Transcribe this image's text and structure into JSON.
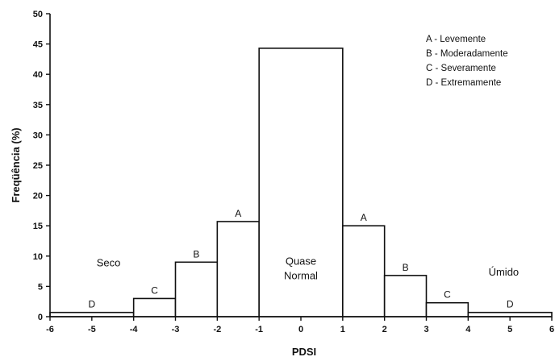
{
  "chart_data": {
    "type": "bar",
    "xlabel": "PDSI",
    "ylabel": "Freqüência (%)",
    "xlim": [
      -6,
      6
    ],
    "ylim": [
      0,
      50
    ],
    "x_ticks": [
      "-6",
      "-5",
      "-4",
      "-3",
      "-2",
      "-1",
      "0",
      "1",
      "2",
      "3",
      "4",
      "5",
      "6"
    ],
    "y_ticks": [
      "0",
      "5",
      "10",
      "15",
      "20",
      "25",
      "30",
      "35",
      "40",
      "45",
      "50"
    ],
    "bars": [
      {
        "x0": -6,
        "x1": -4,
        "value": 0.7,
        "label": "D"
      },
      {
        "x0": -4,
        "x1": -3,
        "value": 3.0,
        "label": "C"
      },
      {
        "x0": -3,
        "x1": -2,
        "value": 9.0,
        "label": "B"
      },
      {
        "x0": -2,
        "x1": -1,
        "value": 15.7,
        "label": "A"
      },
      {
        "x0": -1,
        "x1": 1,
        "value": 44.3,
        "label": ""
      },
      {
        "x0": 1,
        "x1": 2,
        "value": 15.0,
        "label": "A"
      },
      {
        "x0": 2,
        "x1": 3,
        "value": 6.8,
        "label": "B"
      },
      {
        "x0": 3,
        "x1": 4,
        "value": 2.3,
        "label": "C"
      },
      {
        "x0": 4,
        "x1": 6,
        "value": 0.7,
        "label": "D"
      }
    ],
    "region_labels": {
      "dry": "Seco",
      "normal_line1": "Quase",
      "normal_line2": "Normal",
      "wet": "Úmido"
    },
    "legend": [
      "A - Levemente",
      "B - Moderadamente",
      "C - Severamente",
      "D - Extremamente"
    ],
    "legend_position": "top-right",
    "grid": false
  }
}
